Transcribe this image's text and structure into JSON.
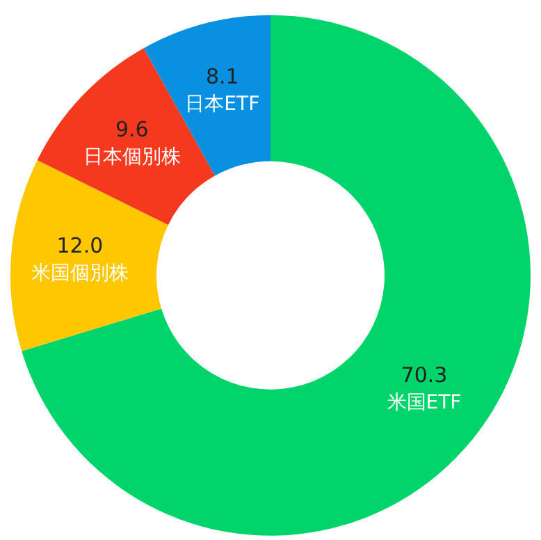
{
  "chart_data": {
    "type": "donut",
    "categories": [
      "米国ETF",
      "米国個別株",
      "日本個別株",
      "日本ETF"
    ],
    "values": [
      70.3,
      12.0,
      9.6,
      8.1
    ],
    "value_labels": [
      "70.3",
      "12.0",
      "9.6",
      "8.1"
    ],
    "colors": [
      "#00d46a",
      "#ffc700",
      "#f4391e",
      "#0a90e0"
    ],
    "legend": false
  }
}
